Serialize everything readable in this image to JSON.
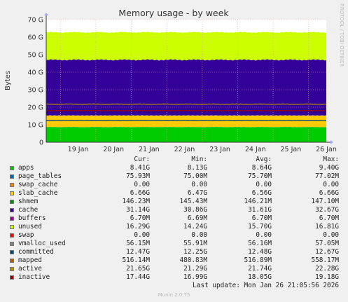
{
  "title": "Memory usage - by week",
  "side_label": "RRDTOOL / TOBI OETIKER",
  "chart_data": {
    "type": "area",
    "title": "Memory usage - by week",
    "ylabel": "Bytes",
    "xlabel": "",
    "ylim": [
      0,
      70
    ],
    "y_unit": "G",
    "y_ticks": [
      "0",
      "10 G",
      "20 G",
      "30 G",
      "40 G",
      "50 G",
      "60 G",
      "70 G"
    ],
    "x_ticks": [
      "19 Jan",
      "20 Jan",
      "21 Jan",
      "22 Jan",
      "23 Jan",
      "24 Jan",
      "25 Jan",
      "26 Jan"
    ],
    "grid": true,
    "stacked_series": [
      {
        "name": "apps",
        "color": "#00cc00",
        "value_g": 8.64
      },
      {
        "name": "page_tables",
        "color": "#0066b3",
        "value_g": 0.076
      },
      {
        "name": "swap_cache",
        "color": "#ff8000",
        "value_g": 0.0
      },
      {
        "name": "slab_cache",
        "color": "#ffcc00",
        "value_g": 6.56
      },
      {
        "name": "shmem",
        "color": "#330099",
        "value_g": 0.146
      },
      {
        "name": "cache",
        "color": "#330099",
        "value_g": 31.61
      },
      {
        "name": "buffers",
        "color": "#990099",
        "value_g": 0.0067
      },
      {
        "name": "unused",
        "color": "#ccff00",
        "value_g": 15.7
      },
      {
        "name": "swap",
        "color": "#ff0000",
        "value_g": 0.0
      }
    ],
    "line_series": [
      {
        "name": "committed",
        "color": "#00487d",
        "value_g": 12.48
      },
      {
        "name": "active",
        "color": "#b38f00",
        "value_g": 21.74
      },
      {
        "name": "inactive",
        "color": "#990000",
        "value_g": 18.05
      }
    ]
  },
  "legend": {
    "headers": {
      "cur": "Cur:",
      "min": "Min:",
      "avg": "Avg:",
      "max": "Max:"
    },
    "rows": [
      {
        "name": "apps",
        "color": "#00cc00",
        "cur": "8.41G",
        "min": "8.13G",
        "avg": "8.64G",
        "max": "9.40G"
      },
      {
        "name": "page_tables",
        "color": "#0066b3",
        "cur": "75.93M",
        "min": "75.00M",
        "avg": "75.70M",
        "max": "77.02M"
      },
      {
        "name": "swap_cache",
        "color": "#ff8000",
        "cur": "0.00",
        "min": "0.00",
        "avg": "0.00",
        "max": "0.00"
      },
      {
        "name": "slab_cache",
        "color": "#ffcc00",
        "cur": "6.66G",
        "min": "6.47G",
        "avg": "6.56G",
        "max": "6.66G"
      },
      {
        "name": "shmem",
        "color": "#008f00",
        "cur": "146.23M",
        "min": "145.43M",
        "avg": "146.21M",
        "max": "147.10M"
      },
      {
        "name": "cache",
        "color": "#330099",
        "cur": "31.14G",
        "min": "30.86G",
        "avg": "31.61G",
        "max": "32.67G"
      },
      {
        "name": "buffers",
        "color": "#990099",
        "cur": "6.70M",
        "min": "6.69M",
        "avg": "6.70M",
        "max": "6.70M"
      },
      {
        "name": "unused",
        "color": "#ccff00",
        "cur": "16.29G",
        "min": "14.24G",
        "avg": "15.70G",
        "max": "16.81G"
      },
      {
        "name": "swap",
        "color": "#ff0000",
        "cur": "0.00",
        "min": "0.00",
        "avg": "0.00",
        "max": "0.00"
      },
      {
        "name": "vmalloc_used",
        "color": "#808080",
        "cur": "56.15M",
        "min": "55.91M",
        "avg": "56.16M",
        "max": "57.05M"
      },
      {
        "name": "committed",
        "color": "#00487d",
        "cur": "12.47G",
        "min": "12.25G",
        "avg": "12.48G",
        "max": "12.67G"
      },
      {
        "name": "mapped",
        "color": "#b35a00",
        "cur": "516.14M",
        "min": "480.83M",
        "avg": "516.89M",
        "max": "558.17M"
      },
      {
        "name": "active",
        "color": "#b38f00",
        "cur": "21.65G",
        "min": "21.29G",
        "avg": "21.74G",
        "max": "22.28G"
      },
      {
        "name": "inactive",
        "color": "#990000",
        "cur": "17.44G",
        "min": "16.99G",
        "avg": "18.05G",
        "max": "19.18G"
      }
    ]
  },
  "last_update": "Last update: Mon Jan 26 21:05:56 2026",
  "munin_version": "Munin 2.0.75"
}
